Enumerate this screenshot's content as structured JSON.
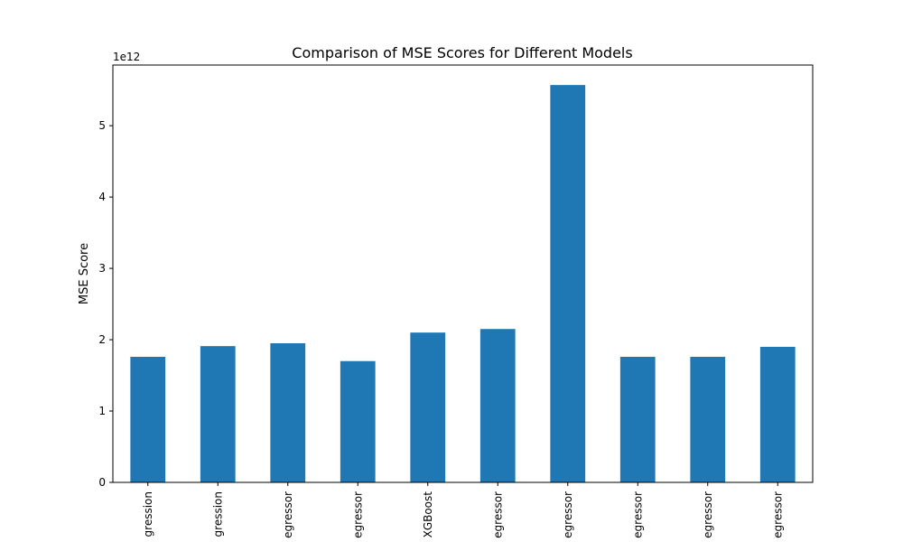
{
  "chart_data": {
    "type": "bar",
    "title": "Comparison of MSE Scores for Different Models",
    "xlabel": "",
    "ylabel": "MSE Score",
    "y_offset_text": "1e12",
    "categories": [
      "gression",
      "gression",
      "egressor",
      "egressor",
      "XGBoost",
      "egressor",
      "egressor",
      "egressor",
      "egressor",
      "egressor"
    ],
    "values": [
      1.76,
      1.91,
      1.95,
      1.7,
      2.1,
      2.15,
      5.57,
      1.76,
      1.76,
      1.9
    ],
    "value_scale": 1000000000000.0,
    "ylim": [
      0,
      5.85
    ],
    "yticks": [
      0,
      1,
      2,
      3,
      4,
      5
    ],
    "grid": false,
    "legend": "none",
    "bar_color": "#1f77b4"
  }
}
